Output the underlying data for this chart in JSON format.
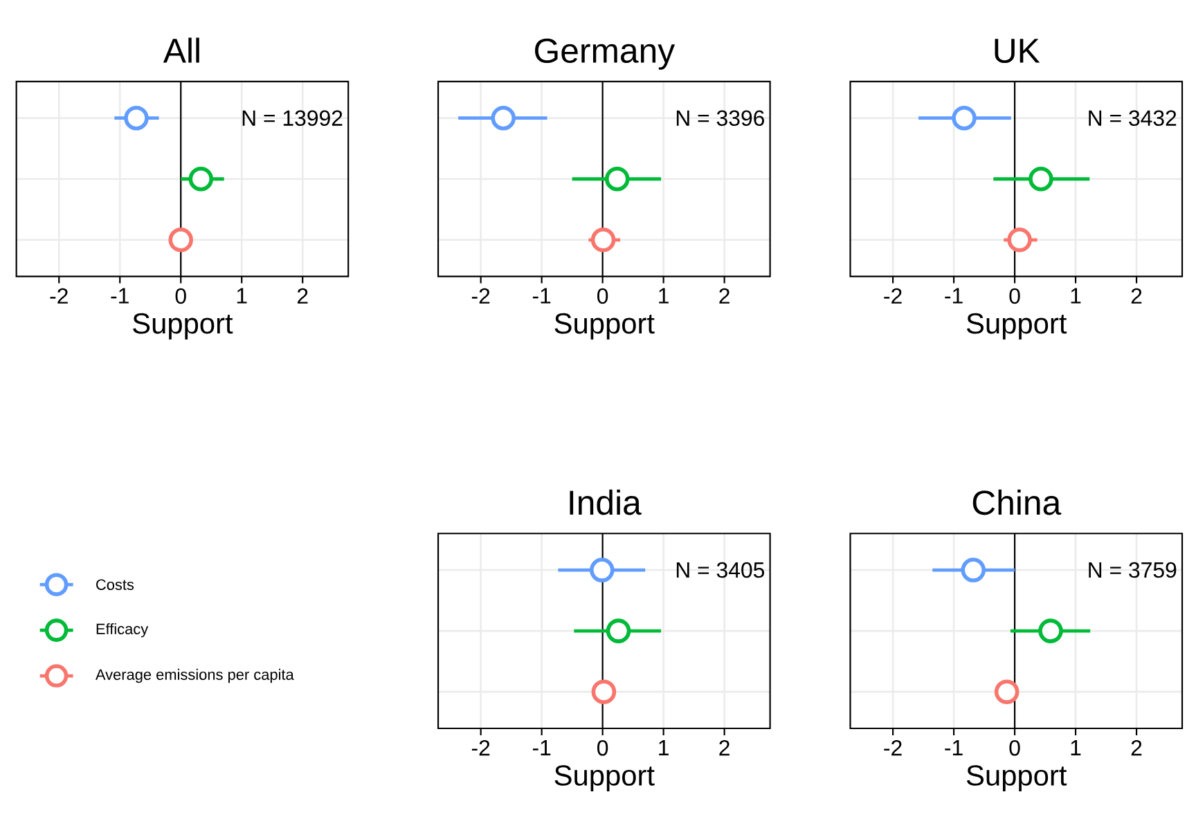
{
  "chart_data": [
    {
      "type": "scatter",
      "orientation": "horizontal",
      "title": "All",
      "xlabel": "Support",
      "categories": [
        null,
        null,
        null
      ],
      "xlim": [
        -2.7,
        2.75
      ],
      "xticks": [
        -2,
        -1,
        0,
        1,
        2
      ],
      "grid": true,
      "marker": "circle",
      "annotations": [
        "N = 13992"
      ],
      "ref_lines": [
        {
          "axis": "x",
          "value": 0,
          "color": "#000000"
        }
      ],
      "series": [
        {
          "color": "#619cff",
          "values": [
            -0.73,
            null,
            null
          ],
          "errors": [
            [
              -1.09,
              -0.36
            ],
            null,
            null
          ]
        },
        {
          "color": "#00ba38",
          "values": [
            null,
            0.33,
            null
          ],
          "errors": [
            null,
            [
              0.0,
              0.71
            ],
            null
          ]
        },
        {
          "color": "#f8766d",
          "values": [
            null,
            null,
            0.0
          ],
          "errors": [
            null,
            null,
            null
          ]
        }
      ]
    },
    {
      "type": "scatter",
      "orientation": "horizontal",
      "title": "Germany",
      "xlabel": "Support",
      "categories": [
        null,
        null,
        null
      ],
      "xlim": [
        -2.7,
        2.75
      ],
      "xticks": [
        -2,
        -1,
        0,
        1,
        2
      ],
      "grid": true,
      "marker": "circle",
      "annotations": [
        "N = 3396"
      ],
      "ref_lines": [
        {
          "axis": "x",
          "value": 0,
          "color": "#000000"
        }
      ],
      "series": [
        {
          "color": "#619cff",
          "values": [
            -1.63,
            null,
            null
          ],
          "errors": [
            [
              -2.37,
              -0.91
            ],
            null,
            null
          ]
        },
        {
          "color": "#00ba38",
          "values": [
            null,
            0.24,
            null
          ],
          "errors": [
            null,
            [
              -0.5,
              0.96
            ],
            null
          ]
        },
        {
          "color": "#f8766d",
          "values": [
            null,
            null,
            0.01
          ],
          "errors": [
            null,
            null,
            [
              -0.23,
              0.29
            ]
          ]
        }
      ]
    },
    {
      "type": "scatter",
      "orientation": "horizontal",
      "title": "UK",
      "xlabel": "Support",
      "categories": [
        null,
        null,
        null
      ],
      "xlim": [
        -2.7,
        2.75
      ],
      "xticks": [
        -2,
        -1,
        0,
        1,
        2
      ],
      "grid": true,
      "marker": "circle",
      "annotations": [
        "N = 3432"
      ],
      "ref_lines": [
        {
          "axis": "x",
          "value": 0,
          "color": "#000000"
        }
      ],
      "series": [
        {
          "color": "#619cff",
          "values": [
            -0.83,
            null,
            null
          ],
          "errors": [
            [
              -1.58,
              -0.06
            ],
            null,
            null
          ]
        },
        {
          "color": "#00ba38",
          "values": [
            null,
            0.43,
            null
          ],
          "errors": [
            null,
            [
              -0.35,
              1.23
            ],
            null
          ]
        },
        {
          "color": "#f8766d",
          "values": [
            null,
            null,
            0.08
          ],
          "errors": [
            null,
            null,
            [
              -0.18,
              0.37
            ]
          ]
        }
      ]
    },
    {
      "type": "scatter",
      "orientation": "horizontal",
      "title": "India",
      "xlabel": "Support",
      "categories": [
        null,
        null,
        null
      ],
      "xlim": [
        -2.7,
        2.75
      ],
      "xticks": [
        -2,
        -1,
        0,
        1,
        2
      ],
      "grid": true,
      "marker": "circle",
      "legend": "left",
      "annotations": [
        "N = 3405"
      ],
      "ref_lines": [
        {
          "axis": "x",
          "value": 0,
          "color": "#000000"
        }
      ],
      "series": [
        {
          "name": "Costs",
          "color": "#619cff",
          "values": [
            -0.01,
            null,
            null
          ],
          "errors": [
            [
              -0.73,
              0.7
            ],
            null,
            null
          ]
        },
        {
          "name": "Efficacy",
          "color": "#00ba38",
          "values": [
            null,
            0.26,
            null
          ],
          "errors": [
            null,
            [
              -0.47,
              0.96
            ],
            null
          ]
        },
        {
          "name": "Average emissions per capita",
          "color": "#f8766d",
          "values": [
            null,
            null,
            0.02
          ],
          "errors": [
            null,
            null,
            null
          ]
        }
      ]
    },
    {
      "type": "scatter",
      "orientation": "horizontal",
      "title": "China",
      "xlabel": "Support",
      "categories": [
        null,
        null,
        null
      ],
      "xlim": [
        -2.7,
        2.75
      ],
      "xticks": [
        -2,
        -1,
        0,
        1,
        2
      ],
      "grid": true,
      "marker": "circle",
      "annotations": [
        "N = 3759"
      ],
      "ref_lines": [
        {
          "axis": "x",
          "value": 0,
          "color": "#000000"
        }
      ],
      "series": [
        {
          "color": "#619cff",
          "values": [
            -0.68,
            null,
            null
          ],
          "errors": [
            [
              -1.35,
              0.0
            ],
            null,
            null
          ]
        },
        {
          "color": "#00ba38",
          "values": [
            null,
            0.59,
            null
          ],
          "errors": [
            null,
            [
              -0.07,
              1.24
            ],
            null
          ]
        },
        {
          "color": "#f8766d",
          "values": [
            null,
            null,
            -0.13
          ],
          "errors": [
            null,
            null,
            null
          ]
        }
      ]
    }
  ]
}
